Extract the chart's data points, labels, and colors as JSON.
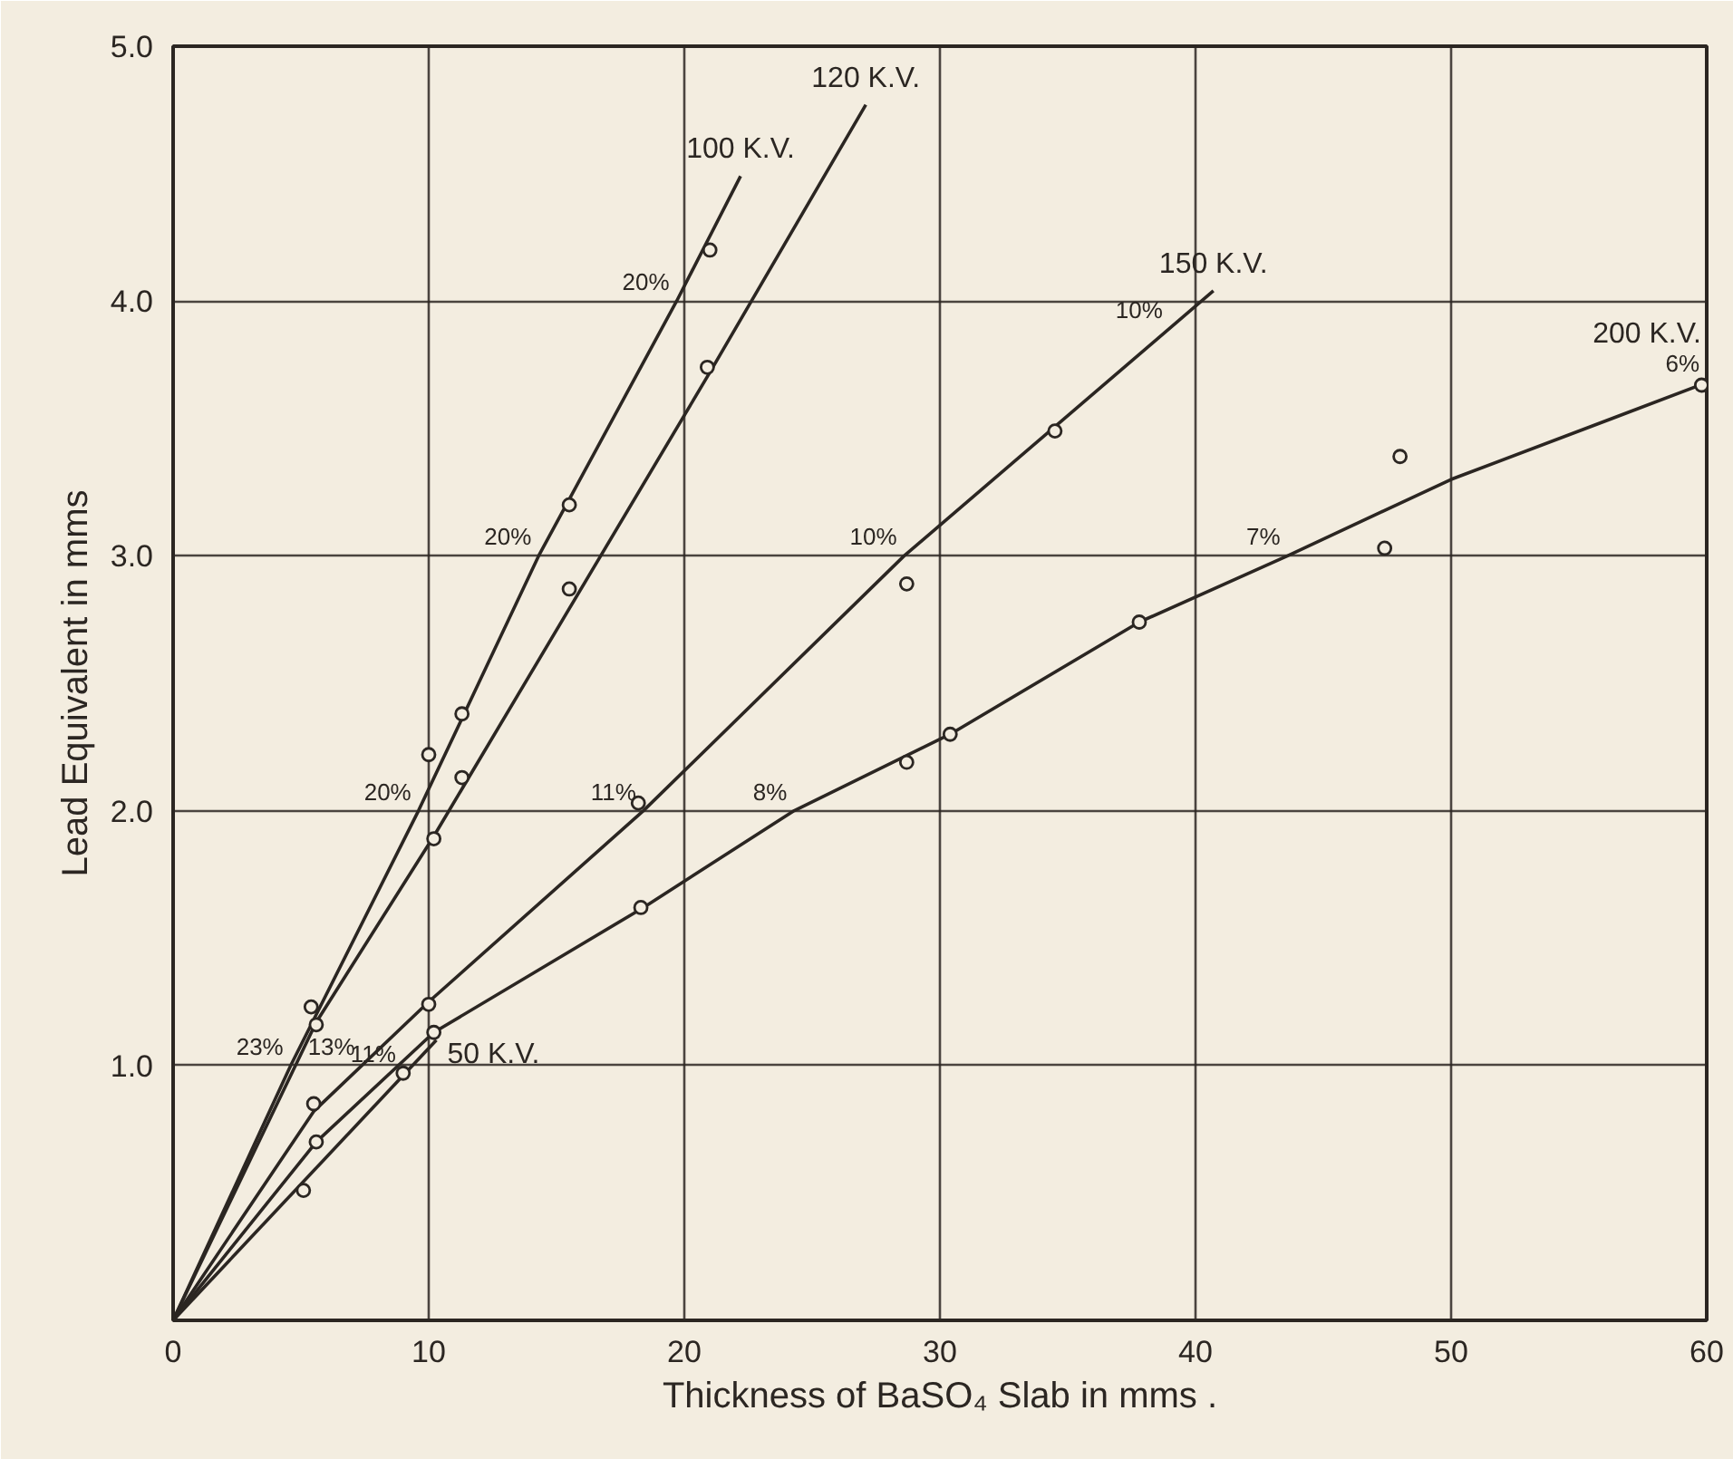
{
  "chart_data": {
    "type": "line",
    "xlabel": "Thickness of BaSO₄ Slab in mms .",
    "ylabel": "Lead Equivalent in mms",
    "xlim": [
      0,
      60
    ],
    "ylim": [
      0,
      5
    ],
    "xticks": [
      0,
      10,
      20,
      30,
      40,
      50,
      60
    ],
    "yticks": [
      {
        "value": 1,
        "label": "1.0"
      },
      {
        "value": 2,
        "label": "2.0"
      },
      {
        "value": 3,
        "label": "3.0"
      },
      {
        "value": 4,
        "label": "4.0"
      },
      {
        "value": 5,
        "label": "5.0"
      }
    ],
    "grid": true,
    "legend": false,
    "line_style": "solid",
    "series": [
      {
        "name": "100 K.V.",
        "color": "#2b2622",
        "marker": "none",
        "x": [
          0,
          4.6,
          9.6,
          14.3,
          19.7,
          22.2
        ],
        "values": [
          0,
          1.0,
          2.0,
          3.0,
          4.0,
          4.49
        ]
      },
      {
        "name": "120 K.V.",
        "color": "#2b2622",
        "marker": "none",
        "x": [
          0,
          5.6,
          10.2,
          21,
          27.1
        ],
        "values": [
          0,
          1.17,
          1.9,
          3.72,
          4.77
        ]
      },
      {
        "name": "150 K.V.",
        "color": "#2b2622",
        "marker": "none",
        "x": [
          0,
          5.5,
          10,
          18.4,
          28.6,
          40.7
        ],
        "values": [
          0,
          0.82,
          1.25,
          2.0,
          3.0,
          4.04
        ]
      },
      {
        "name": "200 K.V.",
        "color": "#2b2622",
        "marker": "none",
        "x": [
          0,
          5.6,
          10.2,
          18.4,
          24.3,
          30.4,
          37.8,
          43.6,
          50,
          60
        ],
        "values": [
          0,
          0.7,
          1.13,
          1.62,
          2.0,
          2.3,
          2.74,
          3.0,
          3.3,
          3.68
        ]
      },
      {
        "name": "50 K.V.",
        "color": "#2b2622",
        "marker": "none",
        "x": [
          0,
          10.3
        ],
        "values": [
          0,
          1.1
        ]
      },
      {
        "type": "scatter",
        "color": "#2b2622",
        "marker": "circle",
        "x": [
          5.4,
          10.0,
          11.3,
          15.5,
          21.0
        ],
        "values": [
          1.23,
          2.22,
          2.38,
          3.2,
          4.2
        ]
      },
      {
        "type": "scatter",
        "color": "#2b2622",
        "marker": "circle",
        "x": [
          5.6,
          10.2,
          11.3,
          15.5,
          20.9
        ],
        "values": [
          1.16,
          1.89,
          2.13,
          2.87,
          3.74
        ]
      },
      {
        "type": "scatter",
        "color": "#2b2622",
        "marker": "circle",
        "x": [
          5.5,
          10.0,
          18.2,
          28.7,
          34.5
        ],
        "values": [
          0.85,
          1.24,
          2.03,
          2.89,
          3.49
        ]
      },
      {
        "type": "scatter",
        "color": "#2b2622",
        "marker": "circle",
        "x": [
          5.6,
          10.2,
          18.3,
          28.7,
          30.4,
          37.8,
          47.4,
          48.0,
          59.8
        ],
        "values": [
          0.7,
          1.13,
          1.62,
          2.19,
          2.3,
          2.74,
          3.03,
          3.39,
          3.67
        ]
      },
      {
        "type": "scatter",
        "color": "#2b2622",
        "marker": "circle",
        "x": [
          5.1,
          9.0
        ],
        "values": [
          0.51,
          0.97
        ]
      }
    ],
    "annotations": [
      {
        "text": "20%",
        "x": 19.7,
        "y": 4.0
      },
      {
        "text": "20%",
        "x": 14.3,
        "y": 3.0
      },
      {
        "text": "20%",
        "x": 9.6,
        "y": 2.0
      },
      {
        "text": "23%",
        "x": 4.6,
        "y": 1.0
      },
      {
        "text": "13%",
        "x": 7.4,
        "y": 1.0
      },
      {
        "text": "11%",
        "x": 9.0,
        "y": 0.97
      },
      {
        "text": "11%",
        "x": 18.4,
        "y": 2.0
      },
      {
        "text": "10%",
        "x": 28.6,
        "y": 3.0
      },
      {
        "text": "10%",
        "x": 39.0,
        "y": 3.89
      },
      {
        "text": "8%",
        "x": 24.3,
        "y": 2.0
      },
      {
        "text": "7%",
        "x": 43.6,
        "y": 3.0
      },
      {
        "text": "6%",
        "x": 60,
        "y": 3.68
      }
    ]
  }
}
